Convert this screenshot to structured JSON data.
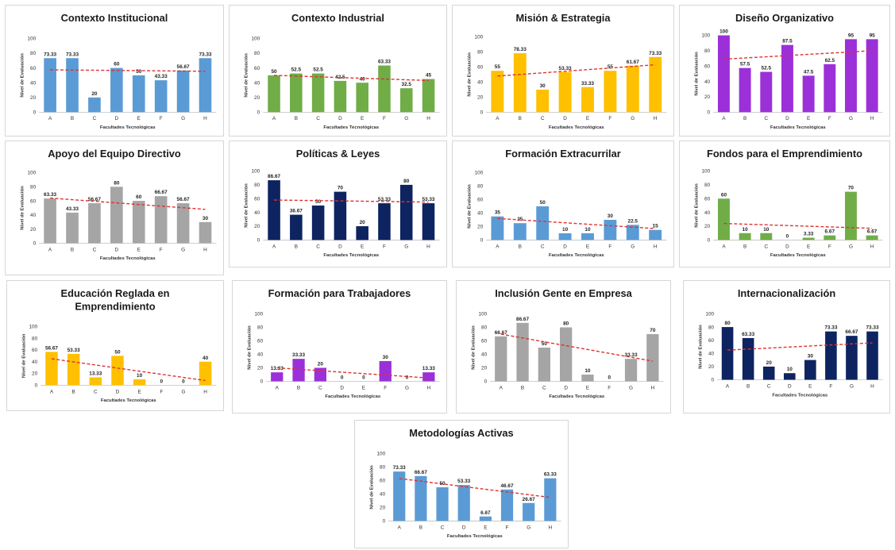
{
  "chart_data": [
    {
      "id": "p1",
      "type": "bar",
      "title_lines": [
        "Contexto Institucional"
      ],
      "color": "#5b9bd5",
      "values": [
        73.33,
        73.33,
        20,
        60,
        50,
        43.33,
        56.67,
        73.33
      ],
      "labels": [
        "73.33",
        "73.33",
        "20",
        "60",
        "50",
        "43.33",
        "56.67",
        "73.33"
      ],
      "trend": [
        57.5,
        55.5
      ]
    },
    {
      "id": "p2",
      "type": "bar",
      "title_lines": [
        "Contexto Industrial"
      ],
      "color": "#70ad47",
      "values": [
        50,
        52.5,
        52.5,
        42.5,
        40,
        63.33,
        32.5,
        45
      ],
      "labels": [
        "50",
        "52.5",
        "52.5",
        "42.5",
        "40",
        "63.33",
        "32.5",
        "45"
      ],
      "trend": [
        50,
        43
      ]
    },
    {
      "id": "p3",
      "type": "bar",
      "title_lines": [
        "Misión & Estrategia"
      ],
      "color": "#ffc000",
      "values": [
        55,
        78.33,
        30,
        53.33,
        33.33,
        55,
        61.67,
        73.33
      ],
      "labels": [
        "55",
        "78.33",
        "30",
        "53.33",
        "33.33",
        "55",
        "61.67",
        "73.33"
      ],
      "trend": [
        48,
        63
      ]
    },
    {
      "id": "p4",
      "type": "bar",
      "title_lines": [
        "Diseño Organizativo"
      ],
      "color": "#9b30d9",
      "values": [
        100,
        57.5,
        52.5,
        87.5,
        47.5,
        62.5,
        95,
        95
      ],
      "labels": [
        "100",
        "57.5",
        "52.5",
        "87.5",
        "47.5",
        "62.5",
        "95",
        "95"
      ],
      "trend": [
        69,
        80
      ]
    },
    {
      "id": "p5",
      "type": "bar",
      "title_lines": [
        "Apoyo del Equipo Directivo"
      ],
      "color": "#a5a5a5",
      "values": [
        63.33,
        43.33,
        56.67,
        80,
        60,
        66.67,
        56.67,
        30
      ],
      "labels": [
        "63.33",
        "43.33",
        "56.67",
        "80",
        "60",
        "66.67",
        "56.67",
        "30"
      ],
      "trend": [
        64,
        48
      ]
    },
    {
      "id": "p6",
      "type": "bar",
      "title_lines": [
        "Políticas & Leyes"
      ],
      "color": "#0d2461",
      "values": [
        86.67,
        36.67,
        50,
        70,
        20,
        53.33,
        80,
        53.33
      ],
      "labels": [
        "86.67",
        "36.67",
        "50",
        "70",
        "20",
        "53.33",
        "80",
        "53.33"
      ],
      "trend": [
        58,
        55
      ]
    },
    {
      "id": "p7",
      "type": "bar",
      "title_lines": [
        "Formación Extracurrilar"
      ],
      "color": "#5b9bd5",
      "values": [
        35,
        25,
        50,
        10,
        10,
        30,
        22.5,
        15
      ],
      "labels": [
        "35",
        "25",
        "50",
        "10",
        "10",
        "30",
        "22.5",
        "15"
      ],
      "trend": [
        32,
        17
      ]
    },
    {
      "id": "p8",
      "type": "bar",
      "title_lines": [
        "Fondos para el Emprendimiento"
      ],
      "color": "#70ad47",
      "values": [
        60,
        10,
        10,
        0,
        3.33,
        6.67,
        70,
        6.67
      ],
      "labels": [
        "60",
        "10",
        "10",
        "0",
        "3.33",
        "6.67",
        "70",
        "6.67"
      ],
      "trend": [
        24,
        17
      ]
    },
    {
      "id": "p9",
      "type": "bar",
      "title_lines": [
        "Educación Reglada en",
        "Emprendimiento"
      ],
      "color": "#ffc000",
      "values": [
        56.67,
        53.33,
        13.33,
        50,
        10,
        0,
        0,
        40
      ],
      "labels": [
        "56.67",
        "53.33",
        "13.33",
        "50",
        "10",
        "0",
        "0",
        "40"
      ],
      "trend": [
        45,
        8
      ]
    },
    {
      "id": "p10",
      "type": "bar",
      "title_lines": [
        "Formación para Trabajadores"
      ],
      "color": "#9b30d9",
      "values": [
        13.33,
        33.33,
        20,
        0,
        0,
        30,
        0,
        13.33
      ],
      "labels": [
        "13.33",
        "33.33",
        "20",
        "0",
        "0",
        "30",
        "0",
        "13.33"
      ],
      "trend": [
        20,
        5
      ]
    },
    {
      "id": "p11",
      "type": "bar",
      "title_lines": [
        "Inclusión Gente en Empresa"
      ],
      "color": "#a5a5a5",
      "values": [
        66.67,
        86.67,
        50,
        80,
        10,
        0,
        33.33,
        70
      ],
      "labels": [
        "66.67",
        "86.67",
        "50",
        "80",
        "10",
        "0",
        "33.33",
        "70"
      ],
      "trend": [
        70,
        30
      ]
    },
    {
      "id": "p12",
      "type": "bar",
      "title_lines": [
        "Internacionalización"
      ],
      "color": "#0d2461",
      "values": [
        80,
        63.33,
        20,
        10,
        30,
        73.33,
        66.67,
        73.33
      ],
      "labels": [
        "80",
        "63.33",
        "20",
        "10",
        "30",
        "73.33",
        "66.67",
        "73.33"
      ],
      "trend": [
        45,
        56
      ]
    },
    {
      "id": "p13",
      "type": "bar",
      "title_lines": [
        "Metodologías Activas"
      ],
      "color": "#5b9bd5",
      "values": [
        73.33,
        66.67,
        50,
        53.33,
        6.67,
        46.67,
        26.67,
        63.33
      ],
      "labels": [
        "73.33",
        "66.67",
        "50",
        "53.33",
        "6.67",
        "46.67",
        "26.67",
        "63.33"
      ],
      "trend": [
        63,
        35
      ]
    }
  ],
  "shared": {
    "categories": [
      "A",
      "B",
      "C",
      "D",
      "E",
      "F",
      "G",
      "H"
    ],
    "ylabel": "Nivel de Evaluación",
    "xlabel": "Facultades Tecnológicas",
    "yticks": [
      0,
      20,
      40,
      60,
      80,
      100
    ],
    "ylim": [
      0,
      100
    ],
    "trend_color": "#e03030"
  }
}
